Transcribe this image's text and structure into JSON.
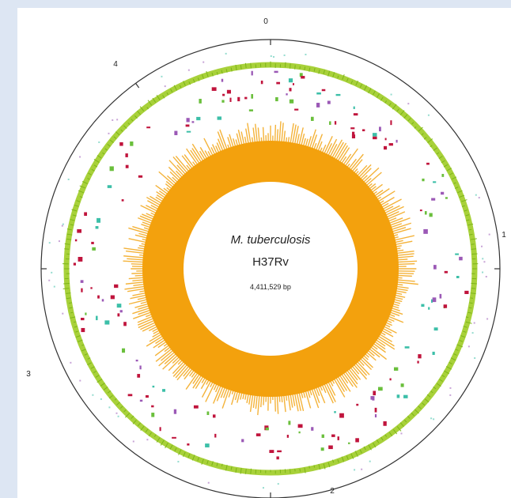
{
  "genome": {
    "organism": "M. tuberculosis",
    "strain": "H37Rv",
    "size_label": "4,411,529 bp"
  },
  "markers": {
    "top": "0",
    "right": "1",
    "bottom": "2",
    "left": "3",
    "upper_left": "4"
  },
  "colors": {
    "outer_ring": "#333333",
    "gc_track": "#a8d13a",
    "gc_track_dark": "#7cb518",
    "core": "#f3a10d",
    "core_spikes": "#f4b33a",
    "feature_red": "#c0143c",
    "feature_purple": "#9b59b6",
    "feature_green": "#6abf3c",
    "feature_teal": "#3cbfa8",
    "center_fill": "#ffffff"
  }
}
